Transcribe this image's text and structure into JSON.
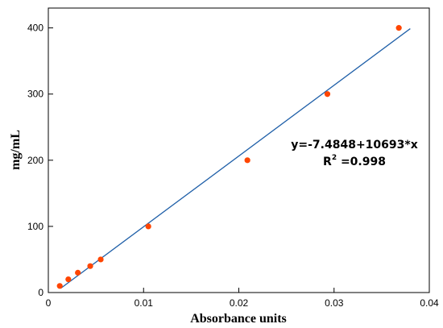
{
  "chart_data": {
    "type": "scatter",
    "xlabel": "Absorbance units",
    "ylabel": "mg/mL",
    "xlim": [
      0,
      0.04
    ],
    "ylim": [
      0,
      430
    ],
    "x_ticks": [
      0,
      0.01,
      0.02,
      0.03,
      0.04
    ],
    "x_tick_labels": [
      "0",
      "0.01",
      "0.02",
      "0.03",
      "0.04"
    ],
    "y_ticks": [
      0,
      100,
      200,
      300,
      400
    ],
    "y_tick_labels": [
      "0",
      "100",
      "200",
      "300",
      "400"
    ],
    "grid": false,
    "points": [
      {
        "x": 0.0012,
        "y": 10
      },
      {
        "x": 0.0021,
        "y": 20
      },
      {
        "x": 0.0031,
        "y": 30
      },
      {
        "x": 0.0044,
        "y": 40
      },
      {
        "x": 0.0055,
        "y": 50
      },
      {
        "x": 0.0105,
        "y": 100
      },
      {
        "x": 0.0209,
        "y": 200
      },
      {
        "x": 0.0293,
        "y": 300
      },
      {
        "x": 0.0368,
        "y": 400
      }
    ],
    "fit_line": {
      "intercept": -7.4848,
      "slope": 10693,
      "x_range": [
        0.0013,
        0.038
      ]
    },
    "annotation": {
      "equation": "y=-7.4848+10693*x",
      "r2_prefix": "R",
      "r2_sup": "2",
      "r2_value": " =0.998"
    },
    "colors": {
      "points": "#ff4500",
      "line": "#1f5fa8",
      "axis": "#000000"
    }
  }
}
